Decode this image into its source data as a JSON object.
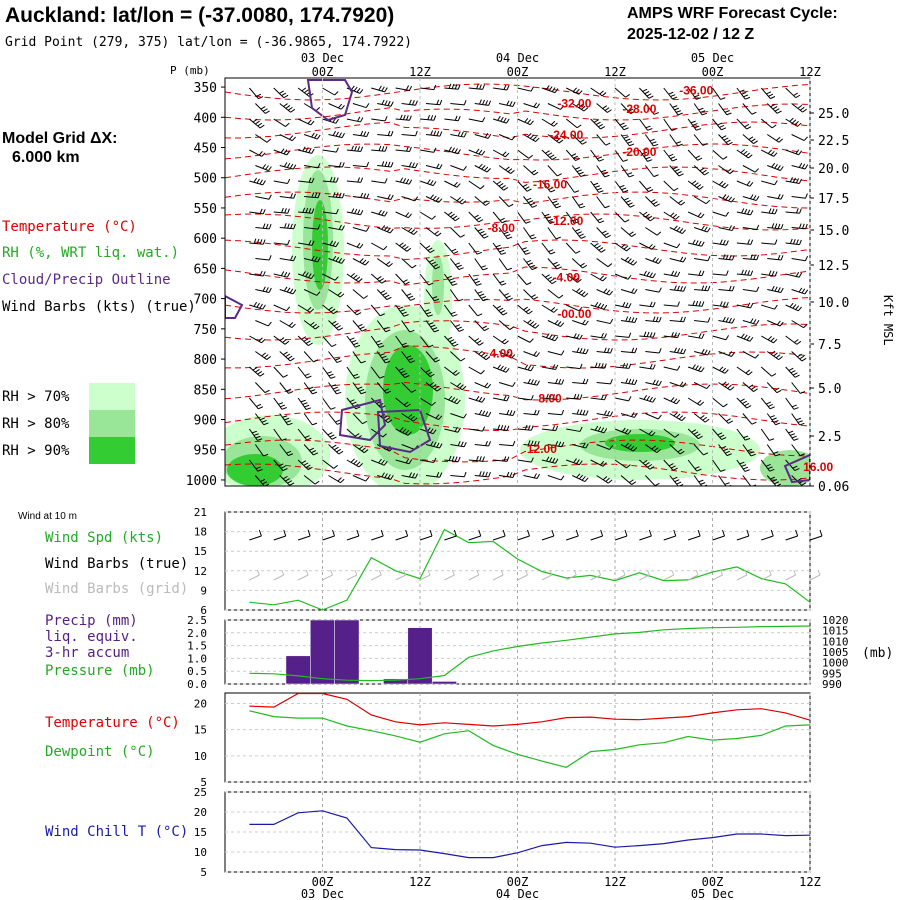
{
  "header": {
    "title": "Auckland:  lat/lon = (-37.0080, 174.7920)",
    "grid_point": "Grid Point (279, 375) lat/lon = (-36.9865, 174.7922)",
    "cycle_title": "AMPS WRF Forecast Cycle:",
    "cycle_value": "2025-12-02 / 12  Z"
  },
  "model_grid": {
    "label": "Model Grid ΔX:",
    "value": "6.000 km"
  },
  "time_axis": {
    "ticks": [
      "00Z",
      "12Z",
      "00Z",
      "12Z",
      "00Z",
      "12Z"
    ],
    "dates": [
      "03 Dec",
      "04 Dec",
      "05 Dec"
    ]
  },
  "colors": {
    "temperature": "#dd0000",
    "rh70": "#ccffcc",
    "rh80": "#99e699",
    "rh90": "#33cc33",
    "cloud": "#5b2a86",
    "dewpoint": "#22bb22",
    "windchill": "#1a1aaa",
    "precip": "#55208a",
    "gridline": "#aaaaaa"
  },
  "cross_section": {
    "p_label": "P (mb)",
    "pressure_ticks": [
      "350",
      "400",
      "450",
      "500",
      "550",
      "600",
      "650",
      "700",
      "750",
      "800",
      "850",
      "900",
      "950",
      "1000"
    ],
    "height_label": "Kft MSL",
    "height_ticks": [
      "25.0",
      "22.5",
      "20.0",
      "17.5",
      "15.0",
      "12.5",
      "10.0",
      "7.5",
      "5.0",
      "2.5",
      "0.06"
    ],
    "legend": {
      "temperature": "Temperature (°C)",
      "rh": "RH (%, WRT liq. wat.)",
      "cloud": "Cloud/Precip Outline",
      "barbs": "Wind Barbs (kts) (true)"
    },
    "rh_legend": [
      "RH > 70%",
      "RH > 80%",
      "RH > 90%"
    ],
    "isotherm_labels": [
      {
        "text": "-36.00",
        "t": 46,
        "p": 362
      },
      {
        "text": "-32.00",
        "t": 31,
        "p": 384
      },
      {
        "text": "-28.00",
        "t": 39,
        "p": 393
      },
      {
        "text": "-24.00",
        "t": 30,
        "p": 436
      },
      {
        "text": "-20.00",
        "t": 39,
        "p": 464
      },
      {
        "text": "-16.00",
        "t": 28,
        "p": 518
      },
      {
        "text": "-12.00",
        "t": 30,
        "p": 578
      },
      {
        "text": "-8.00",
        "t": 22,
        "p": 590
      },
      {
        "text": "-4.00",
        "t": 30,
        "p": 672
      },
      {
        "text": "-00.00",
        "t": 31,
        "p": 732
      },
      {
        "text": "4.00",
        "t": 22,
        "p": 797
      },
      {
        "text": "8.00",
        "t": 28,
        "p": 872
      },
      {
        "text": "12.00",
        "t": 27,
        "p": 955
      },
      {
        "text": "16.00",
        "t": 61,
        "p": 985
      }
    ]
  },
  "surface_panel": {
    "label": "Wind at 10 m",
    "legend": [
      "Wind Spd (kts)",
      "Wind Barbs (true)",
      "Wind Barbs (grid)"
    ],
    "yticks": [
      "21",
      "18",
      "15",
      "12",
      "9",
      "6"
    ]
  },
  "precip_panel": {
    "legend": [
      "Precip (mm)",
      "liq. equiv.",
      "3-hr accum",
      "Pressure (mb)"
    ],
    "yticks_left": [
      "2.5",
      "2.0",
      "1.5",
      "1.0",
      "0.5",
      "0.0"
    ],
    "yticks_right": [
      "1020",
      "1015",
      "1010",
      "1005",
      "1000",
      "995",
      "990"
    ],
    "right_unit": "(mb)"
  },
  "temp_panel": {
    "legend": [
      "Temperature (°C)",
      "Dewpoint (°C)"
    ],
    "yticks": [
      "20",
      "15",
      "10",
      "5"
    ]
  },
  "windchill_panel": {
    "legend": [
      "Wind Chill T (°C)"
    ],
    "yticks": [
      "25",
      "20",
      "15",
      "10",
      "5"
    ]
  },
  "chart_data": [
    {
      "type": "line",
      "name": "surface_wind_speed",
      "x_hours": [
        -9,
        -6,
        -3,
        0,
        3,
        6,
        9,
        12,
        15,
        18,
        21,
        24,
        27,
        30,
        33,
        36,
        39,
        42,
        45,
        48,
        51,
        54,
        57,
        60
      ],
      "series": [
        {
          "name": "Wind Spd (kts)",
          "values": [
            7.2,
            6.8,
            7.5,
            6.0,
            7.5,
            14.0,
            12.0,
            10.8,
            18.3,
            16.3,
            16.5,
            13.8,
            11.9,
            10.9,
            11.3,
            10.5,
            11.7,
            10.5,
            10.6,
            11.8,
            12.6,
            10.8,
            10.0,
            7.2
          ]
        }
      ],
      "ylim": [
        6,
        21
      ]
    },
    {
      "type": "bar",
      "name": "precip_3hr",
      "x_hours": [
        -3,
        0,
        3,
        6,
        9,
        12,
        15
      ],
      "values": [
        1.1,
        2.5,
        2.5,
        0.0,
        0.2,
        2.2,
        0.1
      ],
      "ylim": [
        0,
        2.5
      ]
    },
    {
      "type": "line",
      "name": "surface_pressure",
      "x_hours": [
        -9,
        -6,
        -3,
        0,
        3,
        6,
        9,
        12,
        15,
        18,
        21,
        24,
        27,
        30,
        33,
        36,
        39,
        42,
        45,
        48,
        51,
        54,
        57,
        60
      ],
      "series": [
        {
          "name": "Pressure (mb)",
          "values": [
            995.0,
            994.8,
            993.8,
            992.5,
            991.8,
            991.6,
            991.8,
            992.5,
            994.0,
            1002.5,
            1005.5,
            1007.6,
            1009.2,
            1010.5,
            1012.0,
            1013.5,
            1014.2,
            1015.4,
            1016.0,
            1016.4,
            1016.6,
            1016.9,
            1017.0,
            1017.2
          ]
        }
      ],
      "ylim": [
        990,
        1020
      ]
    },
    {
      "type": "line",
      "name": "temperature_dewpoint",
      "x_hours": [
        -9,
        -6,
        -3,
        0,
        3,
        6,
        9,
        12,
        15,
        18,
        21,
        24,
        27,
        30,
        33,
        36,
        39,
        42,
        45,
        48,
        51,
        54,
        57,
        60
      ],
      "series": [
        {
          "name": "Temperature (°C)",
          "values": [
            19.5,
            19.3,
            21.9,
            21.9,
            20.8,
            17.8,
            16.5,
            15.9,
            16.3,
            16.0,
            15.7,
            16.0,
            16.5,
            17.3,
            17.4,
            17.0,
            16.9,
            17.2,
            17.5,
            18.2,
            18.8,
            19.0,
            18.2,
            16.8
          ]
        },
        {
          "name": "Dewpoint (°C)",
          "values": [
            18.6,
            17.5,
            17.2,
            17.2,
            15.7,
            14.8,
            13.8,
            12.6,
            14.2,
            14.8,
            12.0,
            10.3,
            9.0,
            7.8,
            10.8,
            11.2,
            12.1,
            12.5,
            13.7,
            13.0,
            13.3,
            13.9,
            15.7,
            15.9
          ]
        }
      ],
      "ylim": [
        5,
        22
      ]
    },
    {
      "type": "line",
      "name": "wind_chill",
      "x_hours": [
        -9,
        -6,
        -3,
        0,
        3,
        6,
        9,
        12,
        15,
        18,
        21,
        24,
        27,
        30,
        33,
        36,
        39,
        42,
        45,
        48,
        51,
        54,
        57,
        60
      ],
      "series": [
        {
          "name": "Wind Chill T (°C)",
          "values": [
            16.9,
            16.9,
            19.8,
            20.3,
            18.5,
            11.1,
            10.6,
            10.5,
            9.6,
            8.6,
            8.6,
            9.8,
            11.6,
            12.4,
            12.2,
            11.2,
            11.6,
            12.1,
            13.0,
            13.6,
            14.5,
            14.5,
            14.1,
            14.2
          ]
        }
      ],
      "ylim": [
        5,
        25
      ]
    }
  ]
}
